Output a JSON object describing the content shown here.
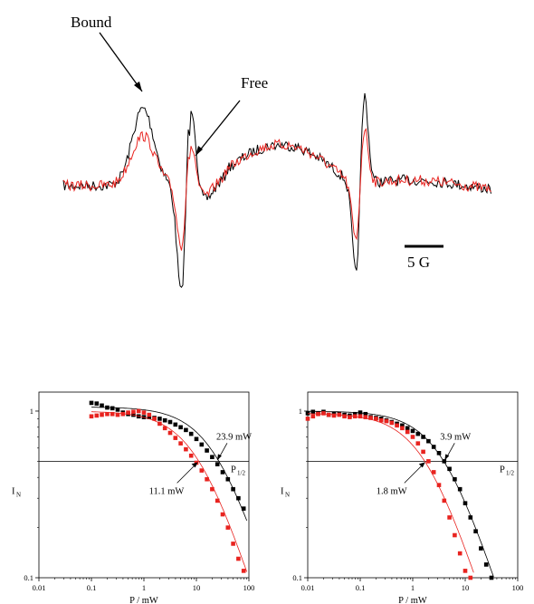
{
  "chart_data": [
    {
      "type": "line",
      "panel": "epr-spectrum",
      "annotations": [
        "Bound",
        "Free"
      ],
      "scale_bar_label": "5 G",
      "series": [
        {
          "color": "#000000"
        },
        {
          "color": "#e8231f"
        }
      ]
    },
    {
      "type": "scatter",
      "panel": "saturation-left",
      "xlabel": "P / mW",
      "ylabel": "I",
      "ylabel_sub": "N",
      "xscale": "log",
      "yscale": "log",
      "xlim": [
        0.01,
        100
      ],
      "ylim": [
        0.1,
        1.3
      ],
      "x_ticks": [
        "0.01",
        "0.1",
        "1",
        "10",
        "100"
      ],
      "y_ticks": [
        "1",
        "0.1"
      ],
      "hline_y": 0.5,
      "hline_label": "P",
      "hline_label_sub": "1/2",
      "annotations": [
        {
          "text": "23.9 mW",
          "x": 23.9,
          "y": 0.5
        },
        {
          "text": "11.1 mW",
          "x": 11.1,
          "y": 0.5
        }
      ],
      "series": [
        {
          "color": "#000000",
          "p_half": 23.9,
          "imax": 1.06,
          "x": [
            0.1,
            0.126,
            0.158,
            0.2,
            0.251,
            0.316,
            0.398,
            0.501,
            0.631,
            0.794,
            1,
            1.259,
            1.585,
            1.995,
            2.512,
            3.162,
            3.981,
            5.012,
            6.31,
            7.943,
            10,
            12.59,
            15.85,
            19.95,
            25.12,
            31.62,
            39.81,
            50.12,
            63.1,
            79.43
          ],
          "y": [
            1.12,
            1.11,
            1.08,
            1.05,
            1.04,
            1.02,
            0.98,
            0.96,
            0.95,
            0.93,
            0.92,
            0.92,
            0.91,
            0.9,
            0.88,
            0.86,
            0.83,
            0.8,
            0.77,
            0.73,
            0.68,
            0.63,
            0.58,
            0.53,
            0.48,
            0.43,
            0.39,
            0.34,
            0.3,
            0.26
          ]
        },
        {
          "color": "#e8231f",
          "p_half": 11.1,
          "imax": 1.0,
          "x": [
            0.1,
            0.126,
            0.158,
            0.2,
            0.251,
            0.316,
            0.398,
            0.501,
            0.631,
            0.794,
            1,
            1.259,
            1.585,
            1.995,
            2.512,
            3.162,
            3.981,
            5.012,
            6.31,
            7.943,
            10,
            12.59,
            15.85,
            19.95,
            25.12,
            31.62,
            39.81,
            50.12,
            63.1,
            79.43
          ],
          "y": [
            0.93,
            0.94,
            0.95,
            0.96,
            0.96,
            0.95,
            0.96,
            0.98,
            0.99,
            1.0,
            0.98,
            0.95,
            0.9,
            0.84,
            0.79,
            0.74,
            0.69,
            0.64,
            0.59,
            0.54,
            0.49,
            0.44,
            0.39,
            0.34,
            0.29,
            0.24,
            0.2,
            0.16,
            0.13,
            0.11
          ]
        }
      ]
    },
    {
      "type": "scatter",
      "panel": "saturation-right",
      "xlabel": "P / mW",
      "ylabel": "I",
      "ylabel_sub": "N",
      "xscale": "log",
      "yscale": "log",
      "xlim": [
        0.01,
        100
      ],
      "ylim": [
        0.1,
        1.3
      ],
      "x_ticks": [
        "0.01",
        "0.1",
        "1",
        "10",
        "100"
      ],
      "y_ticks": [
        "1",
        "0.1"
      ],
      "hline_y": 0.5,
      "hline_label": "P",
      "hline_label_sub": "1/2",
      "annotations": [
        {
          "text": "3.9 mW",
          "x": 3.9,
          "y": 0.5
        },
        {
          "text": "1.8 mW",
          "x": 1.8,
          "y": 0.5
        }
      ],
      "series": [
        {
          "color": "#000000",
          "p_half": 3.9,
          "imax": 1.0,
          "x": [
            0.01,
            0.0126,
            0.0158,
            0.02,
            0.0251,
            0.0316,
            0.0398,
            0.0501,
            0.0631,
            0.0794,
            0.1,
            0.126,
            0.158,
            0.2,
            0.251,
            0.316,
            0.398,
            0.501,
            0.631,
            0.794,
            1,
            1.259,
            1.585,
            1.995,
            2.512,
            3.162,
            3.981,
            5.012,
            6.31,
            7.943,
            10,
            12.59,
            15.85,
            19.95,
            25.12,
            31.62
          ],
          "y": [
            0.97,
            0.99,
            0.97,
            0.99,
            0.95,
            0.96,
            0.96,
            0.95,
            0.94,
            0.96,
            0.98,
            0.96,
            0.92,
            0.91,
            0.9,
            0.88,
            0.86,
            0.84,
            0.82,
            0.79,
            0.76,
            0.73,
            0.7,
            0.66,
            0.61,
            0.56,
            0.5,
            0.45,
            0.39,
            0.34,
            0.28,
            0.23,
            0.19,
            0.15,
            0.12,
            0.1
          ]
        },
        {
          "color": "#e8231f",
          "p_half": 1.8,
          "imax": 0.97,
          "x": [
            0.01,
            0.0126,
            0.0158,
            0.02,
            0.0251,
            0.0316,
            0.0398,
            0.0501,
            0.0631,
            0.0794,
            0.1,
            0.126,
            0.158,
            0.2,
            0.251,
            0.316,
            0.398,
            0.501,
            0.631,
            0.794,
            1,
            1.259,
            1.585,
            1.995,
            2.512,
            3.162,
            3.981,
            5.012,
            6.31,
            7.943,
            10,
            12.59
          ],
          "y": [
            0.9,
            0.93,
            0.96,
            0.97,
            0.95,
            0.94,
            0.95,
            0.93,
            0.92,
            0.93,
            0.93,
            0.92,
            0.91,
            0.9,
            0.88,
            0.87,
            0.85,
            0.82,
            0.79,
            0.75,
            0.7,
            0.64,
            0.57,
            0.5,
            0.43,
            0.36,
            0.29,
            0.23,
            0.18,
            0.14,
            0.11,
            0.1
          ]
        }
      ]
    }
  ]
}
